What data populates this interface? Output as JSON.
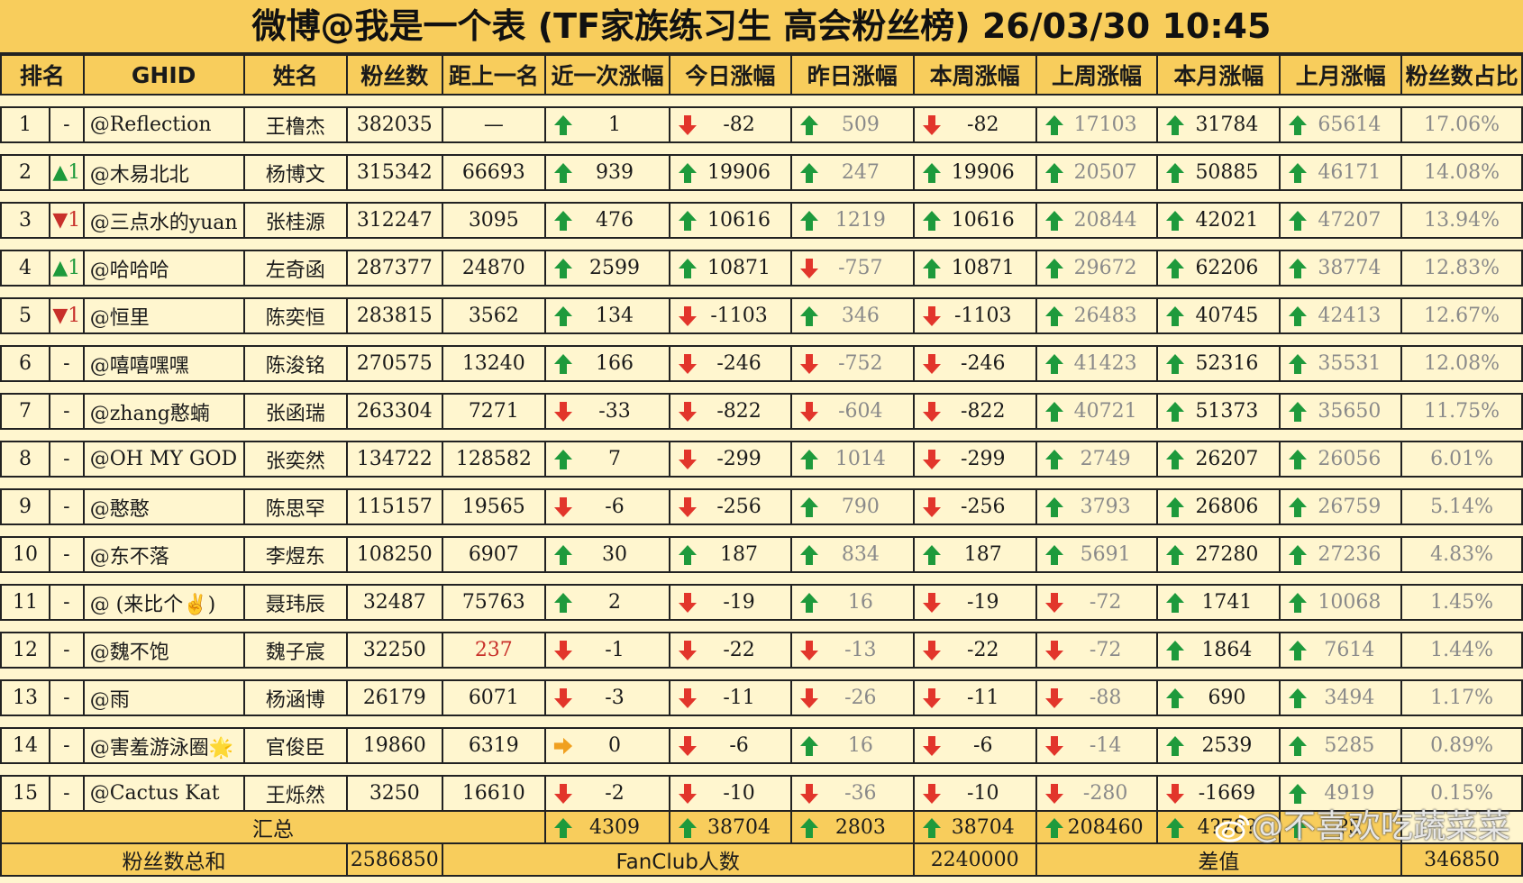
{
  "title": "微博@我是一个表 (TF家族练习生 高会粉丝榜)  26/03/30 10:45",
  "headers": [
    "排名",
    "GHID",
    "姓名",
    "粉丝数",
    "距上一名",
    "近一次涨幅",
    "今日涨幅",
    "昨日涨幅",
    "本周涨幅",
    "上周涨幅",
    "本月涨幅",
    "上月涨幅",
    "粉丝数占比"
  ],
  "colors": {
    "header_bg": "#f8cd5c",
    "row_bg": "#fff6cf",
    "up_arrow": "#1e9a3c",
    "down_arrow": "#e2352b",
    "flat_arrow": "#f0a020"
  },
  "rows": [
    {
      "rank": "1",
      "trend": "-",
      "trend_dir": "none",
      "ghid": "@Reflection",
      "name": "王橹杰",
      "fans": "382035",
      "gap": "—",
      "gap_red": false,
      "recent": {
        "dir": "up",
        "v": "1"
      },
      "today": {
        "dir": "down",
        "v": "-82"
      },
      "yesterday": {
        "dir": "up",
        "v": "509"
      },
      "week": {
        "dir": "down",
        "v": "-82"
      },
      "lastweek": {
        "dir": "up",
        "v": "17103"
      },
      "month": {
        "dir": "up",
        "v": "31784"
      },
      "lastmonth": {
        "dir": "up",
        "v": "65614"
      },
      "pct": "17.06%"
    },
    {
      "rank": "2",
      "trend": "▲1",
      "trend_dir": "up",
      "ghid": "@木易北北",
      "name": "杨博文",
      "fans": "315342",
      "gap": "66693",
      "gap_red": false,
      "recent": {
        "dir": "up",
        "v": "939"
      },
      "today": {
        "dir": "up",
        "v": "19906"
      },
      "yesterday": {
        "dir": "up",
        "v": "247"
      },
      "week": {
        "dir": "up",
        "v": "19906"
      },
      "lastweek": {
        "dir": "up",
        "v": "20507"
      },
      "month": {
        "dir": "up",
        "v": "50885"
      },
      "lastmonth": {
        "dir": "up",
        "v": "46171"
      },
      "pct": "14.08%"
    },
    {
      "rank": "3",
      "trend": "▼1",
      "trend_dir": "down",
      "ghid": "@三点水的yuan",
      "name": "张桂源",
      "fans": "312247",
      "gap": "3095",
      "gap_red": false,
      "recent": {
        "dir": "up",
        "v": "476"
      },
      "today": {
        "dir": "up",
        "v": "10616"
      },
      "yesterday": {
        "dir": "up",
        "v": "1219"
      },
      "week": {
        "dir": "up",
        "v": "10616"
      },
      "lastweek": {
        "dir": "up",
        "v": "20844"
      },
      "month": {
        "dir": "up",
        "v": "42021"
      },
      "lastmonth": {
        "dir": "up",
        "v": "47207"
      },
      "pct": "13.94%"
    },
    {
      "rank": "4",
      "trend": "▲1",
      "trend_dir": "up",
      "ghid": "@哈哈哈",
      "name": "左奇函",
      "fans": "287377",
      "gap": "24870",
      "gap_red": false,
      "recent": {
        "dir": "up",
        "v": "2599"
      },
      "today": {
        "dir": "up",
        "v": "10871"
      },
      "yesterday": {
        "dir": "down",
        "v": "-757"
      },
      "week": {
        "dir": "up",
        "v": "10871"
      },
      "lastweek": {
        "dir": "up",
        "v": "29672"
      },
      "month": {
        "dir": "up",
        "v": "62206"
      },
      "lastmonth": {
        "dir": "up",
        "v": "38774"
      },
      "pct": "12.83%"
    },
    {
      "rank": "5",
      "trend": "▼1",
      "trend_dir": "down",
      "ghid": "@恒里",
      "name": "陈奕恒",
      "fans": "283815",
      "gap": "3562",
      "gap_red": false,
      "recent": {
        "dir": "up",
        "v": "134"
      },
      "today": {
        "dir": "down",
        "v": "-1103"
      },
      "yesterday": {
        "dir": "up",
        "v": "346"
      },
      "week": {
        "dir": "down",
        "v": "-1103"
      },
      "lastweek": {
        "dir": "up",
        "v": "26483"
      },
      "month": {
        "dir": "up",
        "v": "40745"
      },
      "lastmonth": {
        "dir": "up",
        "v": "42413"
      },
      "pct": "12.67%"
    },
    {
      "rank": "6",
      "trend": "-",
      "trend_dir": "none",
      "ghid": "@嘻嘻嘿嘿",
      "name": "陈浚铭",
      "fans": "270575",
      "gap": "13240",
      "gap_red": false,
      "recent": {
        "dir": "up",
        "v": "166"
      },
      "today": {
        "dir": "down",
        "v": "-246"
      },
      "yesterday": {
        "dir": "down",
        "v": "-752"
      },
      "week": {
        "dir": "down",
        "v": "-246"
      },
      "lastweek": {
        "dir": "up",
        "v": "41423"
      },
      "month": {
        "dir": "up",
        "v": "52316"
      },
      "lastmonth": {
        "dir": "up",
        "v": "35531"
      },
      "pct": "12.08%"
    },
    {
      "rank": "7",
      "trend": "-",
      "trend_dir": "none",
      "ghid": "@zhang憨蝻",
      "name": "张函瑞",
      "fans": "263304",
      "gap": "7271",
      "gap_red": false,
      "recent": {
        "dir": "down",
        "v": "-33"
      },
      "today": {
        "dir": "down",
        "v": "-822"
      },
      "yesterday": {
        "dir": "down",
        "v": "-604"
      },
      "week": {
        "dir": "down",
        "v": "-822"
      },
      "lastweek": {
        "dir": "up",
        "v": "40721"
      },
      "month": {
        "dir": "up",
        "v": "51373"
      },
      "lastmonth": {
        "dir": "up",
        "v": "35650"
      },
      "pct": "11.75%"
    },
    {
      "rank": "8",
      "trend": "-",
      "trend_dir": "none",
      "ghid": "@OH MY GOD",
      "name": "张奕然",
      "fans": "134722",
      "gap": "128582",
      "gap_red": false,
      "recent": {
        "dir": "up",
        "v": "7"
      },
      "today": {
        "dir": "down",
        "v": "-299"
      },
      "yesterday": {
        "dir": "up",
        "v": "1014"
      },
      "week": {
        "dir": "down",
        "v": "-299"
      },
      "lastweek": {
        "dir": "up",
        "v": "2749"
      },
      "month": {
        "dir": "up",
        "v": "26207"
      },
      "lastmonth": {
        "dir": "up",
        "v": "26056"
      },
      "pct": "6.01%"
    },
    {
      "rank": "9",
      "trend": "-",
      "trend_dir": "none",
      "ghid": "@憨憨",
      "name": "陈思罕",
      "fans": "115157",
      "gap": "19565",
      "gap_red": false,
      "recent": {
        "dir": "down",
        "v": "-6"
      },
      "today": {
        "dir": "down",
        "v": "-256"
      },
      "yesterday": {
        "dir": "up",
        "v": "790"
      },
      "week": {
        "dir": "down",
        "v": "-256"
      },
      "lastweek": {
        "dir": "up",
        "v": "3793"
      },
      "month": {
        "dir": "up",
        "v": "26806"
      },
      "lastmonth": {
        "dir": "up",
        "v": "26759"
      },
      "pct": "5.14%"
    },
    {
      "rank": "10",
      "trend": "-",
      "trend_dir": "none",
      "ghid": "@东不落",
      "name": "李煜东",
      "fans": "108250",
      "gap": "6907",
      "gap_red": false,
      "recent": {
        "dir": "up",
        "v": "30"
      },
      "today": {
        "dir": "up",
        "v": "187"
      },
      "yesterday": {
        "dir": "up",
        "v": "834"
      },
      "week": {
        "dir": "up",
        "v": "187"
      },
      "lastweek": {
        "dir": "up",
        "v": "5691"
      },
      "month": {
        "dir": "up",
        "v": "27280"
      },
      "lastmonth": {
        "dir": "up",
        "v": "27236"
      },
      "pct": "4.83%"
    },
    {
      "rank": "11",
      "trend": "-",
      "trend_dir": "none",
      "ghid": "@ (来比个✌️)",
      "name": "聂玮辰",
      "fans": "32487",
      "gap": "75763",
      "gap_red": false,
      "recent": {
        "dir": "up",
        "v": "2"
      },
      "today": {
        "dir": "down",
        "v": "-19"
      },
      "yesterday": {
        "dir": "up",
        "v": "16"
      },
      "week": {
        "dir": "down",
        "v": "-19"
      },
      "lastweek": {
        "dir": "down",
        "v": "-72"
      },
      "month": {
        "dir": "up",
        "v": "1741"
      },
      "lastmonth": {
        "dir": "up",
        "v": "10068"
      },
      "pct": "1.45%"
    },
    {
      "rank": "12",
      "trend": "-",
      "trend_dir": "none",
      "ghid": "@魏不饱",
      "name": "魏子宸",
      "fans": "32250",
      "gap": "237",
      "gap_red": true,
      "recent": {
        "dir": "down",
        "v": "-1"
      },
      "today": {
        "dir": "down",
        "v": "-22"
      },
      "yesterday": {
        "dir": "down",
        "v": "-13"
      },
      "week": {
        "dir": "down",
        "v": "-22"
      },
      "lastweek": {
        "dir": "down",
        "v": "-72"
      },
      "month": {
        "dir": "up",
        "v": "1864"
      },
      "lastmonth": {
        "dir": "up",
        "v": "7614"
      },
      "pct": "1.44%"
    },
    {
      "rank": "13",
      "trend": "-",
      "trend_dir": "none",
      "ghid": "@雨",
      "name": "杨涵博",
      "fans": "26179",
      "gap": "6071",
      "gap_red": false,
      "recent": {
        "dir": "down",
        "v": "-3"
      },
      "today": {
        "dir": "down",
        "v": "-11"
      },
      "yesterday": {
        "dir": "down",
        "v": "-26"
      },
      "week": {
        "dir": "down",
        "v": "-11"
      },
      "lastweek": {
        "dir": "down",
        "v": "-88"
      },
      "month": {
        "dir": "up",
        "v": "690"
      },
      "lastmonth": {
        "dir": "up",
        "v": "3494"
      },
      "pct": "1.17%"
    },
    {
      "rank": "14",
      "trend": "-",
      "trend_dir": "none",
      "ghid": "@害羞游泳圈🌟",
      "name": "官俊臣",
      "fans": "19860",
      "gap": "6319",
      "gap_red": false,
      "recent": {
        "dir": "flat",
        "v": "0"
      },
      "today": {
        "dir": "down",
        "v": "-6"
      },
      "yesterday": {
        "dir": "up",
        "v": "16"
      },
      "week": {
        "dir": "down",
        "v": "-6"
      },
      "lastweek": {
        "dir": "down",
        "v": "-14"
      },
      "month": {
        "dir": "up",
        "v": "2539"
      },
      "lastmonth": {
        "dir": "up",
        "v": "5285"
      },
      "pct": "0.89%"
    },
    {
      "rank": "15",
      "trend": "-",
      "trend_dir": "none",
      "ghid": "@Cactus Kat",
      "name": "王烁然",
      "fans": "3250",
      "gap": "16610",
      "gap_red": false,
      "recent": {
        "dir": "down",
        "v": "-2"
      },
      "today": {
        "dir": "down",
        "v": "-10"
      },
      "yesterday": {
        "dir": "down",
        "v": "-36"
      },
      "week": {
        "dir": "down",
        "v": "-10"
      },
      "lastweek": {
        "dir": "down",
        "v": "-280"
      },
      "month": {
        "dir": "down",
        "v": "-1669"
      },
      "lastmonth": {
        "dir": "up",
        "v": "4919"
      },
      "pct": "0.15%"
    }
  ],
  "summary": {
    "label": "汇总",
    "recent": {
      "dir": "up",
      "v": "4309"
    },
    "today": {
      "dir": "up",
      "v": "38704"
    },
    "yesterday": {
      "dir": "up",
      "v": "2803"
    },
    "week": {
      "dir": "up",
      "v": "38704"
    },
    "lastweek": {
      "dir": "up",
      "v": "208460"
    },
    "month": {
      "dir": "up",
      "v": "4?78?"
    },
    "lastmonth": {
      "dir": "up",
      "v": "?5"
    }
  },
  "totals": {
    "fans_total_label": "粉丝数总和",
    "fans_total": "2586850",
    "fanclub_label": "FanClub人数",
    "fanclub": "2240000",
    "diff_label": "差值",
    "diff": "346850"
  },
  "watermark": {
    "text": "@不喜欢吃蔬菜菜",
    "icon": "weibo-logo-icon"
  }
}
